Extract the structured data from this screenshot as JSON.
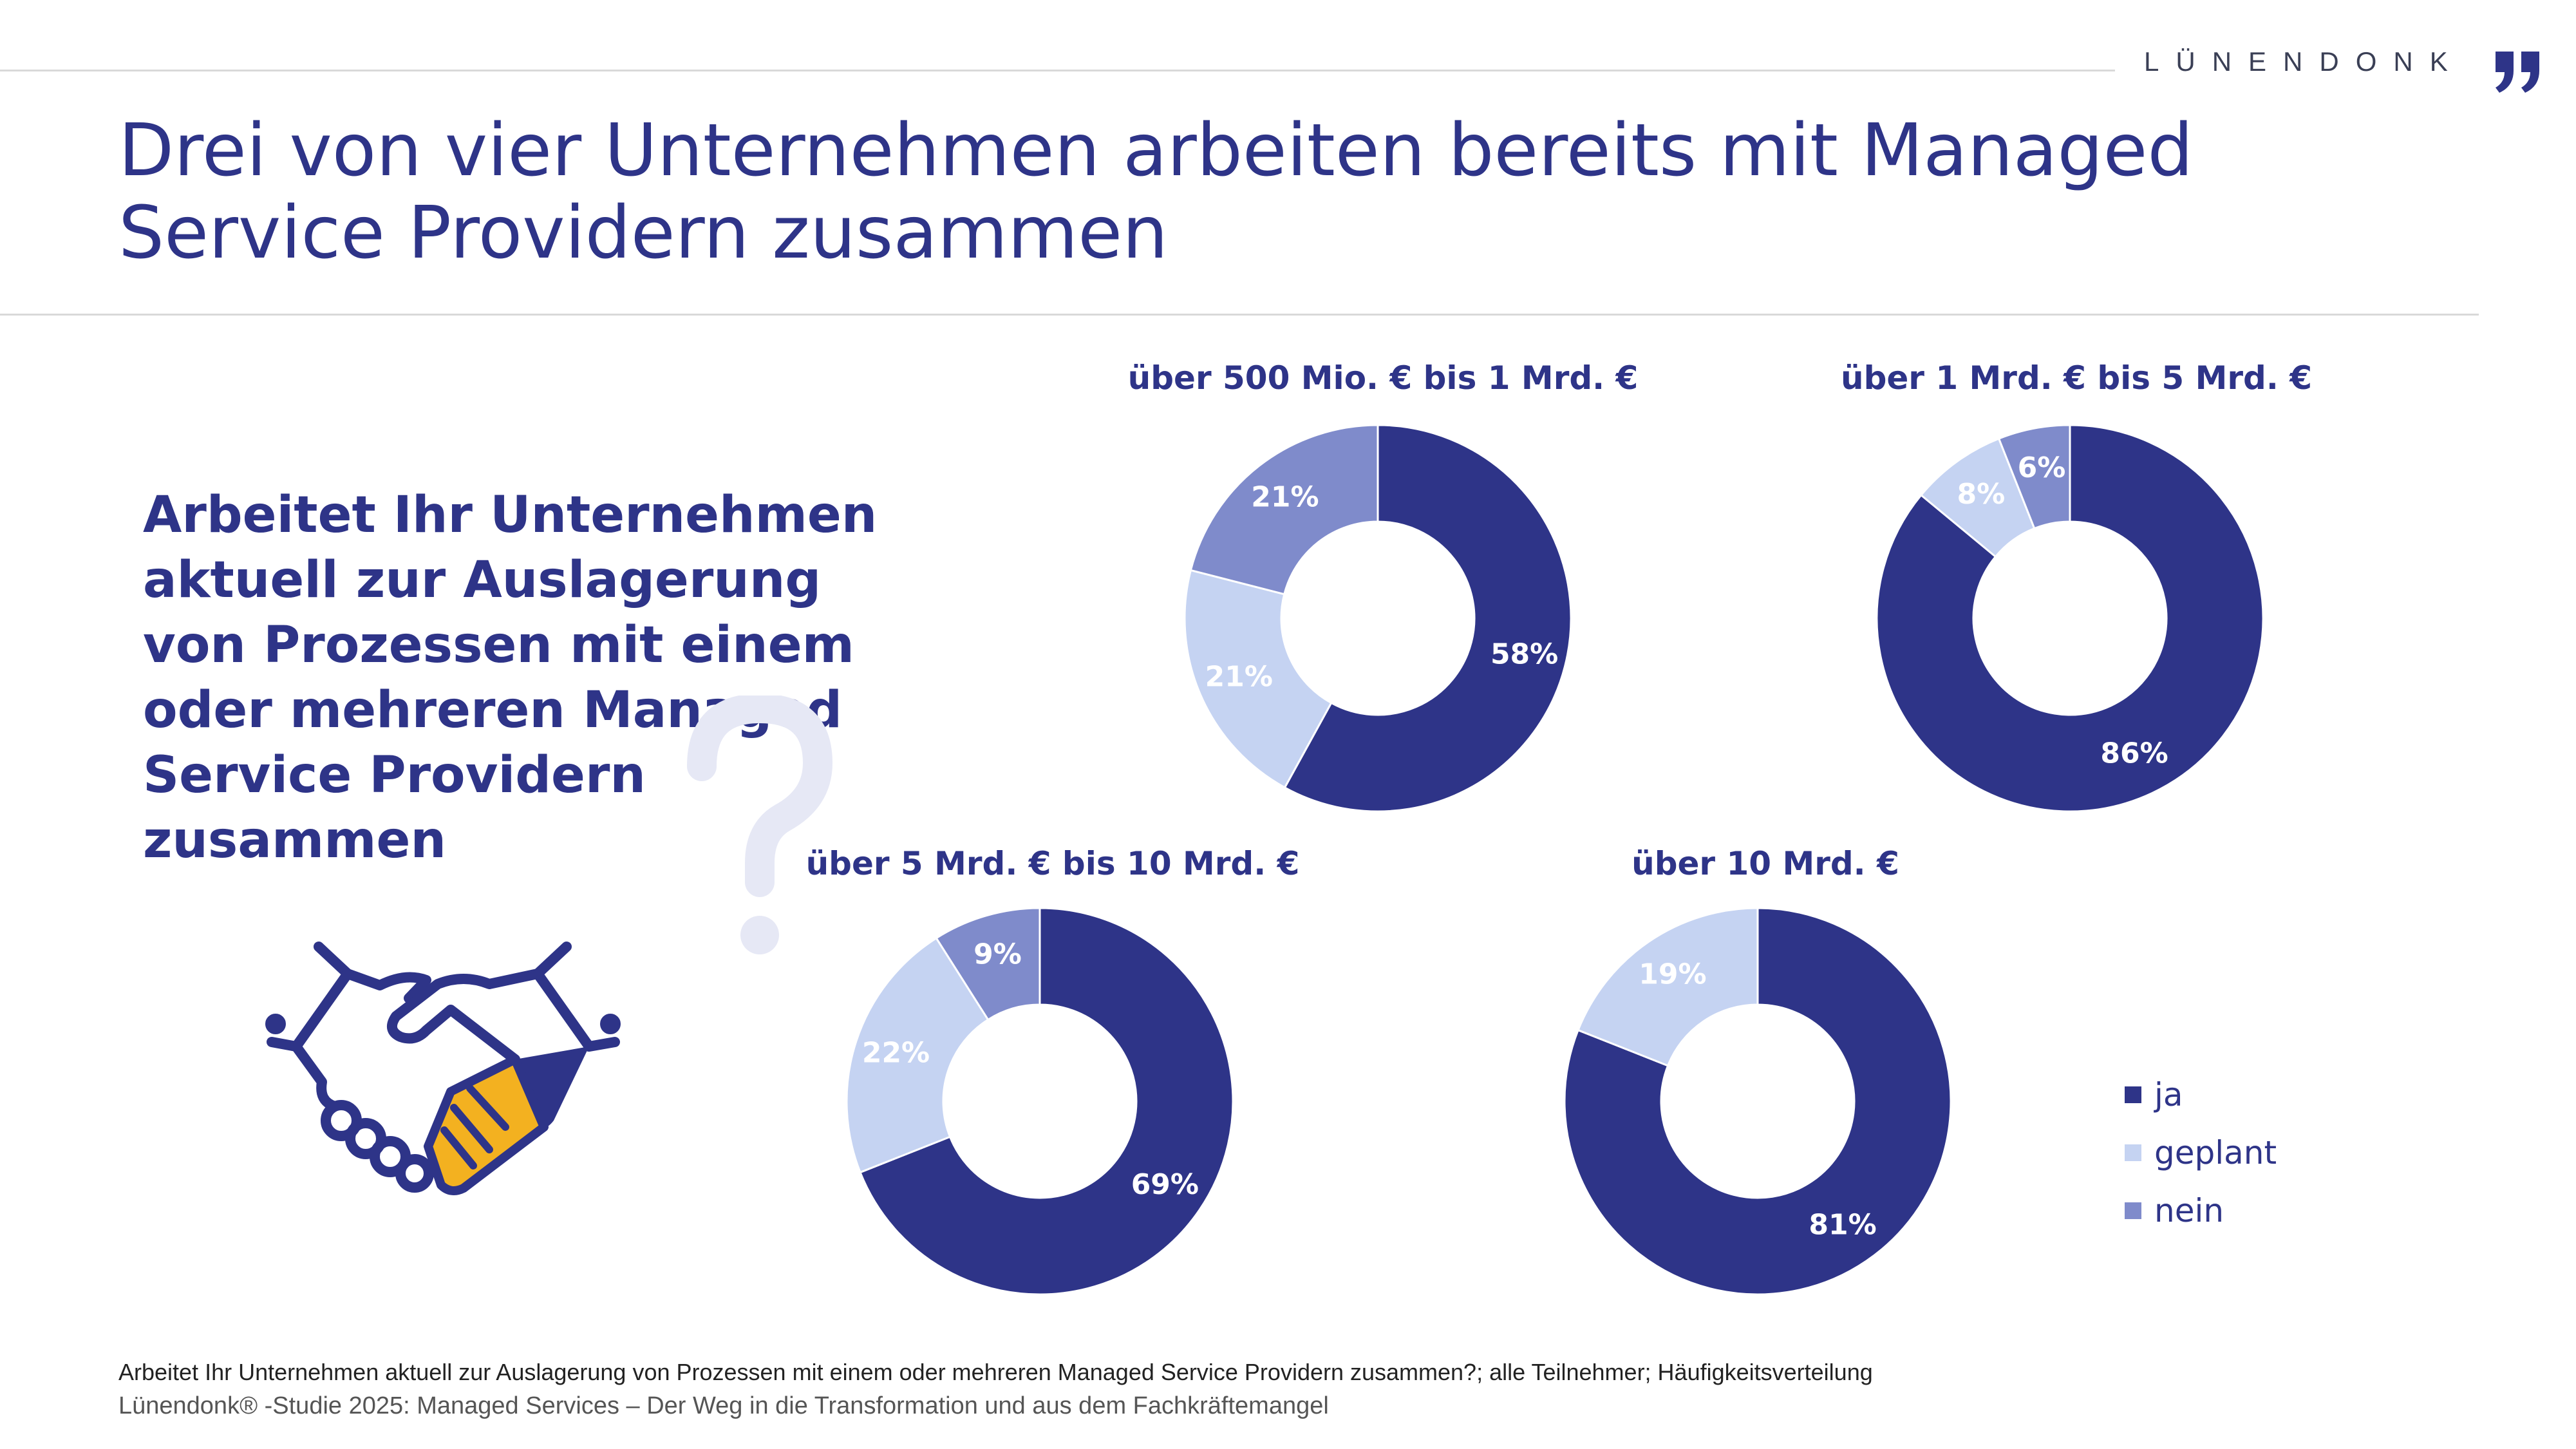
{
  "brand": {
    "name": "LÜNENDONK"
  },
  "title": "Drei von vier Unternehmen arbeiten bereits mit Managed Service Providern zusammen",
  "question": "Arbeitet Ihr Unternehmen aktuell zur Auslagerung von Prozessen mit einem oder mehreren Managed Service Providern zusammen",
  "colors": {
    "ja": "#2e3488",
    "geplant": "#c5d3f2",
    "nein": "#7f8bcb",
    "accent": "#f3b120",
    "qmark": "#e6e8f5"
  },
  "icons": {
    "question": "question-mark-icon",
    "handshake": "handshake-icon"
  },
  "legend": [
    {
      "key": "ja",
      "label": "ja"
    },
    {
      "key": "geplant",
      "label": "geplant"
    },
    {
      "key": "nein",
      "label": "nein"
    }
  ],
  "chart_data": [
    {
      "type": "pie",
      "title": "über 500 Mio. € bis 1 Mrd. €",
      "slices": [
        {
          "key": "ja",
          "label": "ja",
          "value": 58
        },
        {
          "key": "geplant",
          "label": "geplant",
          "value": 21
        },
        {
          "key": "nein",
          "label": "nein",
          "value": 21
        }
      ]
    },
    {
      "type": "pie",
      "title": "über 1 Mrd. € bis 5 Mrd. €",
      "slices": [
        {
          "key": "ja",
          "label": "ja",
          "value": 86
        },
        {
          "key": "geplant",
          "label": "geplant",
          "value": 8
        },
        {
          "key": "nein",
          "label": "nein",
          "value": 6
        }
      ]
    },
    {
      "type": "pie",
      "title": "über 5 Mrd. € bis 10 Mrd. €",
      "slices": [
        {
          "key": "ja",
          "label": "ja",
          "value": 69
        },
        {
          "key": "geplant",
          "label": "geplant",
          "value": 22
        },
        {
          "key": "nein",
          "label": "nein",
          "value": 9
        }
      ]
    },
    {
      "type": "pie",
      "title": "über 10 Mrd. €",
      "slices": [
        {
          "key": "ja",
          "label": "ja",
          "value": 81
        },
        {
          "key": "geplant",
          "label": "geplant",
          "value": 19
        }
      ]
    }
  ],
  "footnote": "Arbeitet Ihr Unternehmen aktuell zur Auslagerung von Prozessen mit einem oder mehreren Managed Service Providern zusammen?; alle Teilnehmer; Häufigkeitsverteilung",
  "source": "Lünendonk® -Studie 2025: Managed Services – Der Weg in die Transformation und aus dem Fachkräftemangel"
}
